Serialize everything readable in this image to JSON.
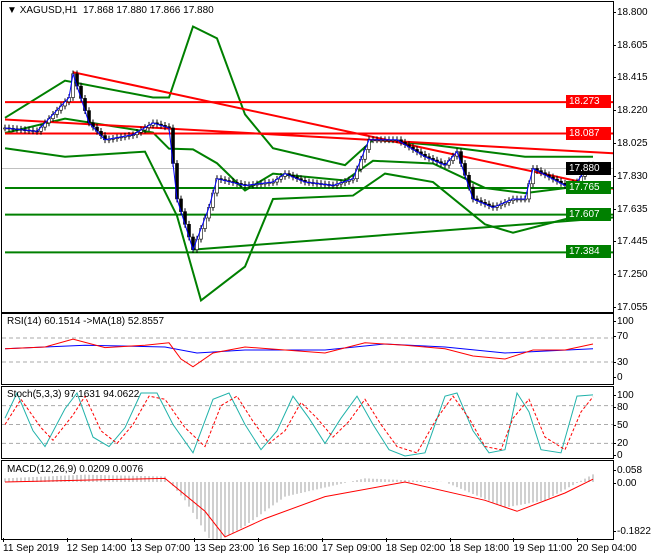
{
  "header": {
    "symbol": "XAGUSD,H1",
    "ohlc": "17.868 17.880 17.866 17.880"
  },
  "price_axis": {
    "ticks": [
      "18.800",
      "18.605",
      "18.415",
      "18.220",
      "18.025",
      "17.830",
      "17.635",
      "17.445",
      "17.250",
      "17.055"
    ],
    "tick_values": [
      18.8,
      18.605,
      18.415,
      18.22,
      18.025,
      17.83,
      17.635,
      17.445,
      17.25,
      17.055
    ],
    "badges": [
      {
        "text": "18.273",
        "value": 18.273,
        "color": "#ff0000"
      },
      {
        "text": "18.087",
        "value": 18.087,
        "color": "#ff0000"
      },
      {
        "text": "17.880",
        "value": 17.88,
        "color": "#000000"
      },
      {
        "text": "17.765",
        "value": 17.765,
        "color": "#008000"
      },
      {
        "text": "17.607",
        "value": 17.607,
        "color": "#008000"
      },
      {
        "text": "17.384",
        "value": 17.384,
        "color": "#008000"
      }
    ]
  },
  "rsi": {
    "label": "RSI(14) 60.1514  ->MA(18) 52.8557",
    "ticks": [
      "100",
      "70",
      "30",
      "0"
    ]
  },
  "stoch": {
    "label": "Stoch(5,3,3) 97.1631 94.0622",
    "ticks": [
      "100",
      "80",
      "50",
      "20",
      "0"
    ]
  },
  "macd": {
    "label": "MACD(12,26,9) 0.0209 0.0076",
    "ticks": [
      "0.058",
      "0.00",
      "-0.1822"
    ]
  },
  "time_axis": [
    "11 Sep 2019",
    "12 Sep 14:00",
    "13 Sep 07:00",
    "13 Sep 23:00",
    "16 Sep 16:00",
    "17 Sep 09:00",
    "18 Sep 02:00",
    "18 Sep 18:00",
    "19 Sep 11:00",
    "20 Sep 04:00"
  ],
  "colors": {
    "resistance": "#ff0000",
    "support": "#008000",
    "bands": "#008000",
    "rsi": "#ff0000",
    "rsi_ma": "#0000ff",
    "stoch_main": "#20b2aa",
    "stoch_signal": "#ff0000",
    "macd_hist": "#a0a0a0",
    "macd_signal": "#ff0000"
  },
  "chart_data": {
    "type": "line",
    "price": [
      [
        0,
        18.12
      ],
      [
        8,
        18.1
      ],
      [
        16,
        18.3
      ],
      [
        17,
        18.44
      ],
      [
        21,
        18.15
      ],
      [
        25,
        18.05
      ],
      [
        32,
        18.08
      ],
      [
        37,
        18.15
      ],
      [
        41,
        18.12
      ],
      [
        43,
        17.7
      ],
      [
        47,
        17.4
      ],
      [
        51,
        17.65
      ],
      [
        53,
        17.82
      ],
      [
        60,
        17.78
      ],
      [
        67,
        17.8
      ],
      [
        70,
        17.85
      ],
      [
        75,
        17.8
      ],
      [
        82,
        17.78
      ],
      [
        87,
        17.82
      ],
      [
        91,
        18.05
      ],
      [
        98,
        18.05
      ],
      [
        105,
        17.95
      ],
      [
        110,
        17.9
      ],
      [
        113,
        17.98
      ],
      [
        117,
        17.7
      ],
      [
        122,
        17.65
      ],
      [
        127,
        17.7
      ],
      [
        130,
        17.7
      ],
      [
        132,
        17.88
      ],
      [
        140,
        17.78
      ],
      [
        143,
        17.8
      ],
      [
        146,
        17.9
      ],
      [
        147,
        17.88
      ]
    ],
    "upper_band": [
      [
        0,
        18.18
      ],
      [
        15,
        18.4
      ],
      [
        37,
        18.3
      ],
      [
        41,
        18.3
      ],
      [
        47,
        18.72
      ],
      [
        53,
        18.65
      ],
      [
        60,
        18.2
      ],
      [
        67,
        18.0
      ],
      [
        85,
        17.9
      ],
      [
        92,
        18.05
      ],
      [
        107,
        18.02
      ],
      [
        120,
        17.98
      ],
      [
        130,
        17.95
      ],
      [
        147,
        17.95
      ]
    ],
    "lower_band": [
      [
        0,
        18.0
      ],
      [
        15,
        17.95
      ],
      [
        35,
        17.98
      ],
      [
        43,
        17.6
      ],
      [
        49,
        17.1
      ],
      [
        60,
        17.3
      ],
      [
        67,
        17.7
      ],
      [
        87,
        17.72
      ],
      [
        95,
        17.85
      ],
      [
        107,
        17.8
      ],
      [
        120,
        17.55
      ],
      [
        127,
        17.5
      ],
      [
        140,
        17.58
      ],
      [
        147,
        17.62
      ]
    ],
    "lines": [
      {
        "kind": "resistance",
        "from": [
          17,
          18.45
        ],
        "to": [
          152,
          17.76
        ]
      },
      {
        "kind": "resistance",
        "from": [
          0,
          18.17
        ],
        "to": [
          152,
          17.97
        ]
      },
      {
        "kind": "resistance",
        "from": [
          0,
          18.273
        ],
        "to": [
          152,
          18.273
        ]
      },
      {
        "kind": "resistance",
        "from": [
          0,
          18.087
        ],
        "to": [
          152,
          18.087
        ]
      },
      {
        "kind": "support",
        "from": [
          0,
          17.765
        ],
        "to": [
          152,
          17.765
        ]
      },
      {
        "kind": "support",
        "from": [
          0,
          17.607
        ],
        "to": [
          152,
          17.607
        ]
      },
      {
        "kind": "support",
        "from": [
          0,
          17.384
        ],
        "to": [
          152,
          17.384
        ]
      },
      {
        "kind": "support",
        "from": [
          47,
          17.4
        ],
        "to": [
          152,
          17.59
        ]
      }
    ],
    "rsi": [
      [
        0,
        52
      ],
      [
        10,
        55
      ],
      [
        17,
        68
      ],
      [
        25,
        54
      ],
      [
        35,
        58
      ],
      [
        41,
        62
      ],
      [
        44,
        35
      ],
      [
        47,
        22
      ],
      [
        52,
        45
      ],
      [
        60,
        55
      ],
      [
        70,
        50
      ],
      [
        80,
        45
      ],
      [
        90,
        62
      ],
      [
        100,
        58
      ],
      [
        110,
        52
      ],
      [
        117,
        40
      ],
      [
        125,
        35
      ],
      [
        132,
        50
      ],
      [
        140,
        50
      ],
      [
        147,
        60
      ]
    ],
    "rsi_ma": [
      [
        0,
        52
      ],
      [
        20,
        58
      ],
      [
        40,
        55
      ],
      [
        48,
        45
      ],
      [
        60,
        50
      ],
      [
        80,
        50
      ],
      [
        95,
        60
      ],
      [
        110,
        55
      ],
      [
        125,
        45
      ],
      [
        147,
        52
      ]
    ],
    "stoch_main": [
      [
        0,
        60
      ],
      [
        3,
        100
      ],
      [
        7,
        40
      ],
      [
        10,
        15
      ],
      [
        15,
        75
      ],
      [
        18,
        100
      ],
      [
        22,
        30
      ],
      [
        26,
        15
      ],
      [
        30,
        45
      ],
      [
        34,
        100
      ],
      [
        38,
        100
      ],
      [
        42,
        50
      ],
      [
        47,
        5
      ],
      [
        52,
        90
      ],
      [
        56,
        100
      ],
      [
        60,
        50
      ],
      [
        64,
        10
      ],
      [
        68,
        40
      ],
      [
        72,
        95
      ],
      [
        76,
        60
      ],
      [
        80,
        20
      ],
      [
        84,
        60
      ],
      [
        88,
        95
      ],
      [
        92,
        50
      ],
      [
        96,
        10
      ],
      [
        100,
        0
      ],
      [
        105,
        5
      ],
      [
        110,
        95
      ],
      [
        113,
        100
      ],
      [
        117,
        40
      ],
      [
        121,
        5
      ],
      [
        125,
        10
      ],
      [
        128,
        100
      ],
      [
        131,
        70
      ],
      [
        134,
        10
      ],
      [
        139,
        5
      ],
      [
        143,
        95
      ],
      [
        147,
        97
      ]
    ],
    "stoch_signal": [
      [
        0,
        50
      ],
      [
        4,
        90
      ],
      [
        9,
        45
      ],
      [
        12,
        25
      ],
      [
        17,
        65
      ],
      [
        20,
        95
      ],
      [
        24,
        40
      ],
      [
        28,
        20
      ],
      [
        32,
        50
      ],
      [
        36,
        95
      ],
      [
        40,
        90
      ],
      [
        45,
        45
      ],
      [
        50,
        15
      ],
      [
        54,
        80
      ],
      [
        58,
        95
      ],
      [
        62,
        55
      ],
      [
        66,
        20
      ],
      [
        70,
        40
      ],
      [
        74,
        85
      ],
      [
        78,
        60
      ],
      [
        82,
        30
      ],
      [
        86,
        55
      ],
      [
        90,
        90
      ],
      [
        94,
        50
      ],
      [
        98,
        15
      ],
      [
        103,
        5
      ],
      [
        108,
        60
      ],
      [
        112,
        95
      ],
      [
        116,
        60
      ],
      [
        120,
        15
      ],
      [
        124,
        10
      ],
      [
        127,
        60
      ],
      [
        131,
        90
      ],
      [
        135,
        30
      ],
      [
        140,
        10
      ],
      [
        144,
        70
      ],
      [
        147,
        94
      ]
    ],
    "macd_hist": [
      [
        0,
        0.01
      ],
      [
        20,
        0.02
      ],
      [
        40,
        0.015
      ],
      [
        45,
        -0.05
      ],
      [
        52,
        -0.17
      ],
      [
        60,
        -0.12
      ],
      [
        70,
        -0.04
      ],
      [
        90,
        0.01
      ],
      [
        110,
        0.0
      ],
      [
        125,
        -0.07
      ],
      [
        135,
        -0.05
      ],
      [
        147,
        0.021
      ]
    ],
    "macd_signal": [
      [
        0,
        0.0
      ],
      [
        40,
        0.01
      ],
      [
        50,
        -0.08
      ],
      [
        55,
        -0.15
      ],
      [
        65,
        -0.1
      ],
      [
        80,
        -0.04
      ],
      [
        100,
        0.0
      ],
      [
        120,
        -0.05
      ],
      [
        128,
        -0.08
      ],
      [
        140,
        -0.03
      ],
      [
        147,
        0.0076
      ]
    ]
  }
}
